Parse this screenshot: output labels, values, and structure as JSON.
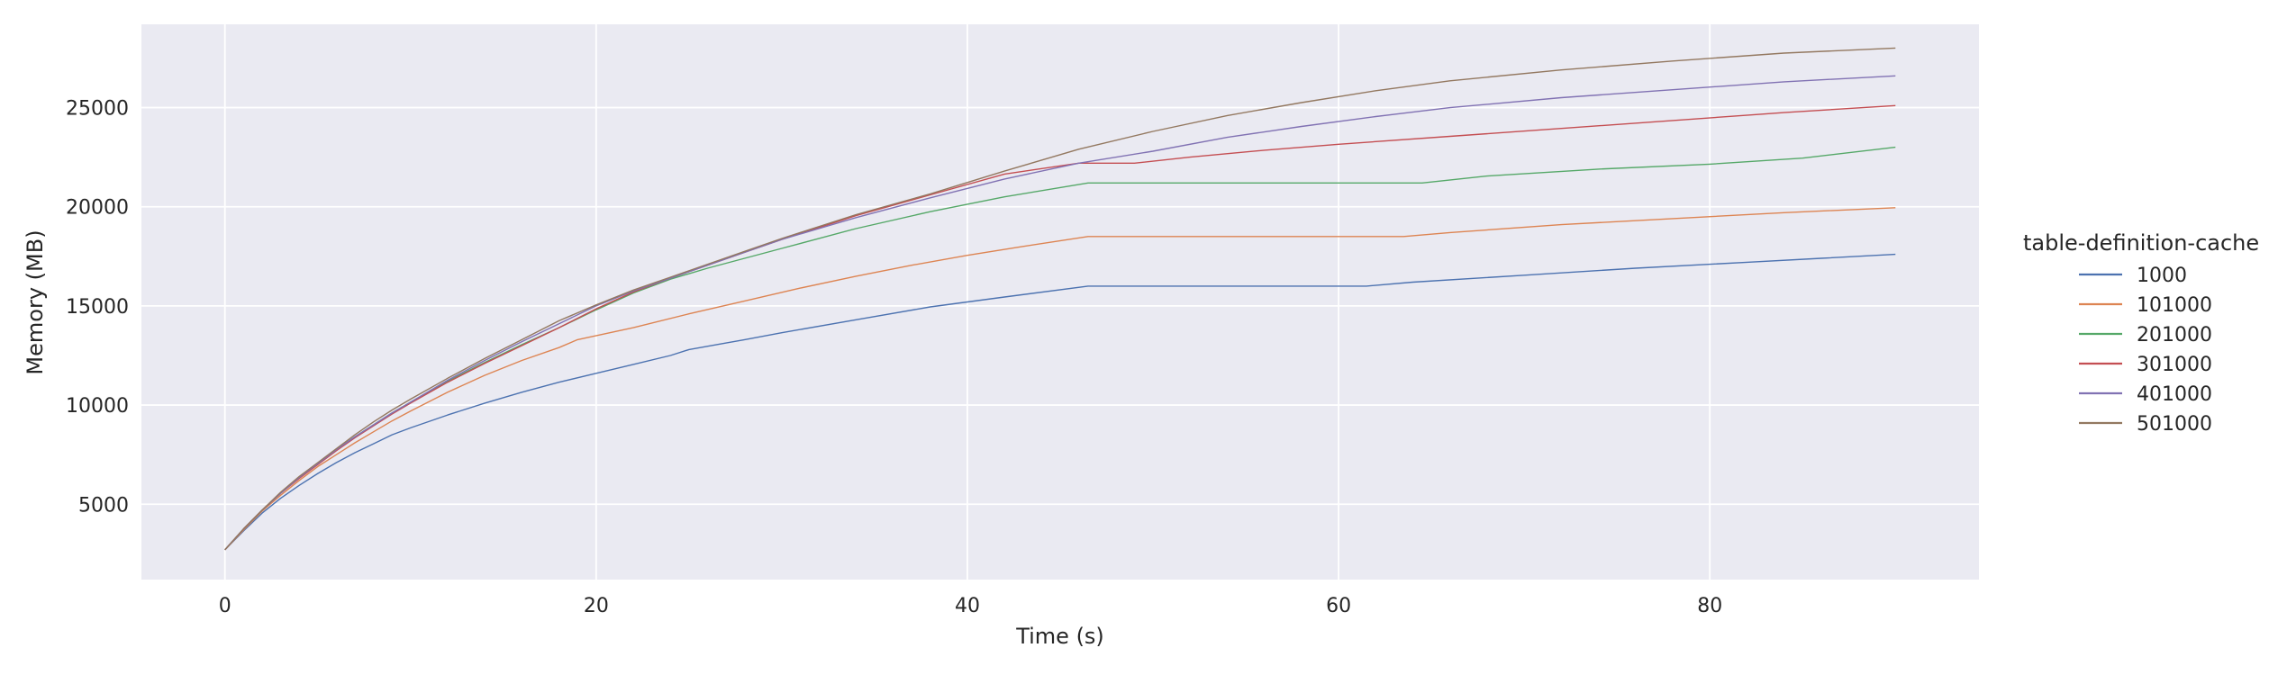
{
  "chart_data": {
    "type": "line",
    "title": "",
    "xlabel": "Time (s)",
    "ylabel": "Memory (MB)",
    "xlim": [
      -4.5,
      94.5
    ],
    "ylim": [
      1200,
      29200
    ],
    "xticks": [
      0,
      20,
      40,
      60,
      80
    ],
    "yticks": [
      5000,
      10000,
      15000,
      20000,
      25000
    ],
    "grid": true,
    "legend": {
      "title": "table-definition-cache",
      "placement": "right"
    },
    "series": [
      {
        "name": "1000",
        "color": "#4c72b0",
        "points": [
          [
            0,
            2700
          ],
          [
            1,
            3650
          ],
          [
            2,
            4550
          ],
          [
            3,
            5300
          ],
          [
            4,
            5950
          ],
          [
            5,
            6550
          ],
          [
            6,
            7100
          ],
          [
            7,
            7600
          ],
          [
            8,
            8050
          ],
          [
            9,
            8500
          ],
          [
            10,
            8850
          ],
          [
            12,
            9500
          ],
          [
            14,
            10100
          ],
          [
            16,
            10650
          ],
          [
            18,
            11150
          ],
          [
            20,
            11600
          ],
          [
            22,
            12050
          ],
          [
            24,
            12500
          ],
          [
            25,
            12800
          ],
          [
            28,
            13300
          ],
          [
            30,
            13650
          ],
          [
            34,
            14300
          ],
          [
            38,
            14950
          ],
          [
            42,
            15450
          ],
          [
            46.5,
            16000
          ],
          [
            50,
            16000
          ],
          [
            55,
            16000
          ],
          [
            61.5,
            16000
          ],
          [
            64,
            16200
          ],
          [
            70,
            16550
          ],
          [
            76,
            16900
          ],
          [
            82,
            17200
          ],
          [
            86,
            17400
          ],
          [
            90,
            17600
          ]
        ]
      },
      {
        "name": "101000",
        "color": "#dd8452",
        "points": [
          [
            0,
            2700
          ],
          [
            1,
            3700
          ],
          [
            2,
            4650
          ],
          [
            3,
            5450
          ],
          [
            4,
            6200
          ],
          [
            5,
            6900
          ],
          [
            6,
            7500
          ],
          [
            7,
            8100
          ],
          [
            8,
            8650
          ],
          [
            9,
            9200
          ],
          [
            10,
            9700
          ],
          [
            12,
            10650
          ],
          [
            14,
            11500
          ],
          [
            16,
            12250
          ],
          [
            18,
            12900
          ],
          [
            19,
            13300
          ],
          [
            22,
            13900
          ],
          [
            25,
            14600
          ],
          [
            28,
            15250
          ],
          [
            31,
            15900
          ],
          [
            34,
            16500
          ],
          [
            37,
            17050
          ],
          [
            40,
            17550
          ],
          [
            43,
            18000
          ],
          [
            46.5,
            18500
          ],
          [
            50,
            18500
          ],
          [
            56,
            18500
          ],
          [
            63.5,
            18500
          ],
          [
            66,
            18700
          ],
          [
            72,
            19100
          ],
          [
            78,
            19400
          ],
          [
            84,
            19700
          ],
          [
            90,
            19950
          ]
        ]
      },
      {
        "name": "201000",
        "color": "#55a868",
        "points": [
          [
            0,
            2700
          ],
          [
            1,
            3750
          ],
          [
            2,
            4700
          ],
          [
            3,
            5550
          ],
          [
            4,
            6350
          ],
          [
            5,
            7050
          ],
          [
            6,
            7750
          ],
          [
            7,
            8400
          ],
          [
            8,
            9000
          ],
          [
            9,
            9600
          ],
          [
            10,
            10150
          ],
          [
            12,
            11200
          ],
          [
            14,
            12150
          ],
          [
            16,
            13050
          ],
          [
            18,
            13900
          ],
          [
            20,
            14800
          ],
          [
            22,
            15650
          ],
          [
            24,
            16350
          ],
          [
            26,
            16900
          ],
          [
            28,
            17400
          ],
          [
            30,
            17900
          ],
          [
            34,
            18900
          ],
          [
            38,
            19750
          ],
          [
            42,
            20500
          ],
          [
            46.5,
            21200
          ],
          [
            50,
            21200
          ],
          [
            56,
            21200
          ],
          [
            64.5,
            21200
          ],
          [
            68,
            21550
          ],
          [
            74,
            21900
          ],
          [
            80,
            22150
          ],
          [
            85,
            22450
          ],
          [
            90,
            23000
          ]
        ]
      },
      {
        "name": "301000",
        "color": "#c44e52",
        "points": [
          [
            0,
            2700
          ],
          [
            1,
            3750
          ],
          [
            2,
            4700
          ],
          [
            3,
            5550
          ],
          [
            4,
            6300
          ],
          [
            5,
            7000
          ],
          [
            6,
            7700
          ],
          [
            7,
            8350
          ],
          [
            8,
            8950
          ],
          [
            9,
            9550
          ],
          [
            10,
            10100
          ],
          [
            12,
            11150
          ],
          [
            14,
            12100
          ],
          [
            16,
            13000
          ],
          [
            18,
            13900
          ],
          [
            20,
            14850
          ],
          [
            22,
            15700
          ],
          [
            24,
            16400
          ],
          [
            26,
            17050
          ],
          [
            28,
            17700
          ],
          [
            30,
            18350
          ],
          [
            34,
            19550
          ],
          [
            38,
            20600
          ],
          [
            42,
            21650
          ],
          [
            46,
            22200
          ],
          [
            49,
            22200
          ],
          [
            52,
            22500
          ],
          [
            56,
            22850
          ],
          [
            60,
            23150
          ],
          [
            66,
            23550
          ],
          [
            72,
            23950
          ],
          [
            78,
            24350
          ],
          [
            84,
            24750
          ],
          [
            90,
            25100
          ]
        ]
      },
      {
        "name": "401000",
        "color": "#8172b3",
        "points": [
          [
            0,
            2700
          ],
          [
            1,
            3750
          ],
          [
            2,
            4700
          ],
          [
            3,
            5550
          ],
          [
            4,
            6350
          ],
          [
            5,
            7050
          ],
          [
            6,
            7750
          ],
          [
            7,
            8400
          ],
          [
            8,
            9000
          ],
          [
            9,
            9600
          ],
          [
            10,
            10150
          ],
          [
            12,
            11250
          ],
          [
            14,
            12250
          ],
          [
            16,
            13200
          ],
          [
            18,
            14100
          ],
          [
            20,
            15000
          ],
          [
            22,
            15750
          ],
          [
            24,
            16400
          ],
          [
            26,
            17050
          ],
          [
            28,
            17700
          ],
          [
            30,
            18350
          ],
          [
            34,
            19450
          ],
          [
            38,
            20450
          ],
          [
            42,
            21400
          ],
          [
            46,
            22200
          ],
          [
            50,
            22800
          ],
          [
            54,
            23500
          ],
          [
            58,
            24050
          ],
          [
            62,
            24550
          ],
          [
            66,
            25000
          ],
          [
            72,
            25500
          ],
          [
            78,
            25900
          ],
          [
            84,
            26300
          ],
          [
            90,
            26600
          ]
        ]
      },
      {
        "name": "501000",
        "color": "#937860",
        "points": [
          [
            0,
            2700
          ],
          [
            1,
            3750
          ],
          [
            2,
            4700
          ],
          [
            3,
            5600
          ],
          [
            4,
            6400
          ],
          [
            5,
            7100
          ],
          [
            6,
            7800
          ],
          [
            7,
            8500
          ],
          [
            8,
            9150
          ],
          [
            9,
            9750
          ],
          [
            10,
            10300
          ],
          [
            12,
            11350
          ],
          [
            14,
            12350
          ],
          [
            16,
            13300
          ],
          [
            18,
            14250
          ],
          [
            20,
            15050
          ],
          [
            22,
            15800
          ],
          [
            24,
            16450
          ],
          [
            26,
            17100
          ],
          [
            28,
            17750
          ],
          [
            30,
            18400
          ],
          [
            34,
            19600
          ],
          [
            38,
            20650
          ],
          [
            42,
            21800
          ],
          [
            46,
            22900
          ],
          [
            50,
            23800
          ],
          [
            54,
            24600
          ],
          [
            58,
            25250
          ],
          [
            62,
            25850
          ],
          [
            66,
            26350
          ],
          [
            72,
            26900
          ],
          [
            78,
            27350
          ],
          [
            84,
            27750
          ],
          [
            90,
            28000
          ]
        ]
      }
    ]
  }
}
